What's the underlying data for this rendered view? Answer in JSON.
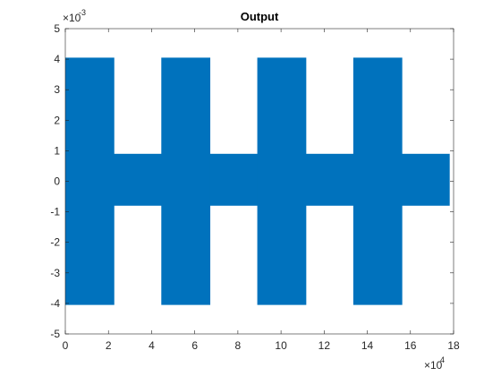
{
  "chart_data": {
    "type": "area",
    "title": "Output",
    "xlabel": "",
    "ylabel": "",
    "x_exponent_label": "×10",
    "x_exponent_power": "4",
    "y_exponent_label": "×10",
    "y_exponent_power": "-3",
    "xlim": [
      0,
      18
    ],
    "ylim": [
      -5,
      5
    ],
    "x_ticks": [
      0,
      2,
      4,
      6,
      8,
      10,
      12,
      14,
      16,
      18
    ],
    "y_ticks": [
      -5,
      -4,
      -3,
      -2,
      -1,
      0,
      1,
      2,
      3,
      4,
      5
    ],
    "x_tick_labels": [
      "0",
      "2",
      "4",
      "6",
      "8",
      "10",
      "12",
      "14",
      "16",
      "18"
    ],
    "y_tick_labels": [
      "-5",
      "-4",
      "-3",
      "-2",
      "-1",
      "0",
      "1",
      "2",
      "3",
      "4",
      "5"
    ],
    "grid": false,
    "series_color": "#0072BD",
    "envelope_segments": [
      {
        "x_start": 0.0,
        "x_end": 2.25,
        "upper": 4.05,
        "lower": -4.05
      },
      {
        "x_start": 2.25,
        "x_end": 4.45,
        "upper": 0.9,
        "lower": -0.8
      },
      {
        "x_start": 4.45,
        "x_end": 6.7,
        "upper": 4.05,
        "lower": -4.05
      },
      {
        "x_start": 6.7,
        "x_end": 8.9,
        "upper": 0.9,
        "lower": -0.8
      },
      {
        "x_start": 8.9,
        "x_end": 11.15,
        "upper": 4.05,
        "lower": -4.05
      },
      {
        "x_start": 11.15,
        "x_end": 13.35,
        "upper": 0.9,
        "lower": -0.8
      },
      {
        "x_start": 13.35,
        "x_end": 15.6,
        "upper": 4.05,
        "lower": -4.05
      },
      {
        "x_start": 15.6,
        "x_end": 17.8,
        "upper": 0.9,
        "lower": -0.8
      }
    ]
  }
}
